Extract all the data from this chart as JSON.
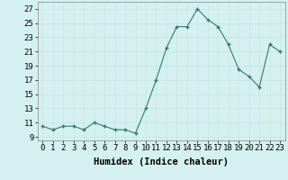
{
  "x": [
    0,
    1,
    2,
    3,
    4,
    5,
    6,
    7,
    8,
    9,
    10,
    11,
    12,
    13,
    14,
    15,
    16,
    17,
    18,
    19,
    20,
    21,
    22,
    23
  ],
  "y": [
    10.5,
    10.0,
    10.5,
    10.5,
    10.0,
    11.0,
    10.5,
    10.0,
    10.0,
    9.5,
    13.0,
    17.0,
    21.5,
    24.5,
    24.5,
    27.0,
    25.5,
    24.5,
    22.0,
    18.5,
    17.5,
    16.0,
    22.0,
    21.0
  ],
  "title": "",
  "xlabel": "Humidex (Indice chaleur)",
  "ylabel": "",
  "xlim": [
    -0.5,
    23.5
  ],
  "ylim": [
    8.5,
    28.0
  ],
  "yticks": [
    9,
    11,
    13,
    15,
    17,
    19,
    21,
    23,
    25,
    27
  ],
  "ytick_labels": [
    "9",
    "11",
    "13",
    "15",
    "17",
    "19",
    "21",
    "23",
    "25",
    "27"
  ],
  "xticks": [
    0,
    1,
    2,
    3,
    4,
    5,
    6,
    7,
    8,
    9,
    10,
    11,
    12,
    13,
    14,
    15,
    16,
    17,
    18,
    19,
    20,
    21,
    22,
    23
  ],
  "line_color": "#2d7d6e",
  "marker_color": "#2d7d6e",
  "bg_color": "#d4f0f0",
  "grid_color": "#c8e8e0",
  "font_family": "monospace",
  "xlabel_fontsize": 7.5,
  "tick_fontsize": 6.5
}
